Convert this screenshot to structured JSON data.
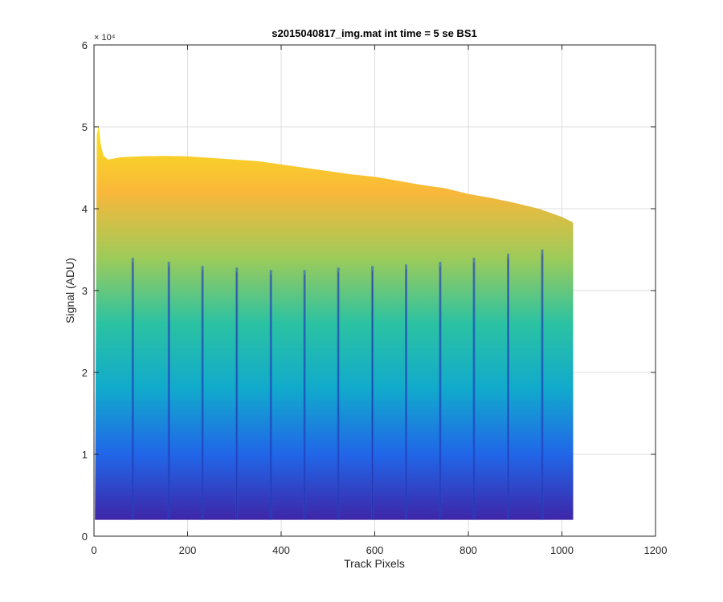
{
  "chart_data": {
    "type": "area",
    "title": "s2015040817_img.mat int time = 5 se   BS1",
    "xlabel": "Track Pixels",
    "ylabel": "Signal (ADU)",
    "xlim": [
      0,
      1200
    ],
    "ylim": [
      0,
      60000
    ],
    "x_ticks": [
      0,
      200,
      400,
      600,
      800,
      1000,
      1200
    ],
    "x_tick_labels": [
      "0",
      "200",
      "400",
      "600",
      "800",
      "1000",
      "1200"
    ],
    "y_ticks": [
      0,
      10000,
      20000,
      30000,
      40000,
      50000,
      60000
    ],
    "y_tick_labels": [
      "0",
      "1",
      "2",
      "3",
      "4",
      "5",
      "6"
    ],
    "y_exponent_label": "× 10⁴",
    "grid": true,
    "colormap": [
      "#3e26a8",
      "#2166e8",
      "#11aacc",
      "#2bc2a2",
      "#9ecb59",
      "#f9b73a",
      "#f9e21c"
    ],
    "upper_envelope": {
      "x": [
        2,
        6,
        10,
        14,
        20,
        30,
        40,
        60,
        100,
        150,
        200,
        250,
        300,
        350,
        400,
        450,
        500,
        550,
        600,
        650,
        700,
        750,
        800,
        850,
        900,
        950,
        1000,
        1024
      ],
      "y": [
        2700,
        49000,
        50200,
        48000,
        46500,
        46000,
        46100,
        46300,
        46400,
        46450,
        46400,
        46200,
        46000,
        45800,
        45400,
        45000,
        44600,
        44200,
        43900,
        43400,
        42900,
        42500,
        41800,
        41300,
        40700,
        40000,
        39000,
        38300
      ]
    },
    "lower_envelope": {
      "x": [
        2,
        1024
      ],
      "y": [
        2000,
        2000
      ]
    },
    "dip_columns": {
      "x": [
        83,
        160,
        232,
        305,
        378,
        450,
        522,
        595,
        667,
        740,
        812,
        885,
        958
      ],
      "peak_y": [
        34000,
        33500,
        33000,
        32800,
        32500,
        32500,
        32800,
        33000,
        33200,
        33500,
        34000,
        34500,
        35000
      ]
    }
  }
}
